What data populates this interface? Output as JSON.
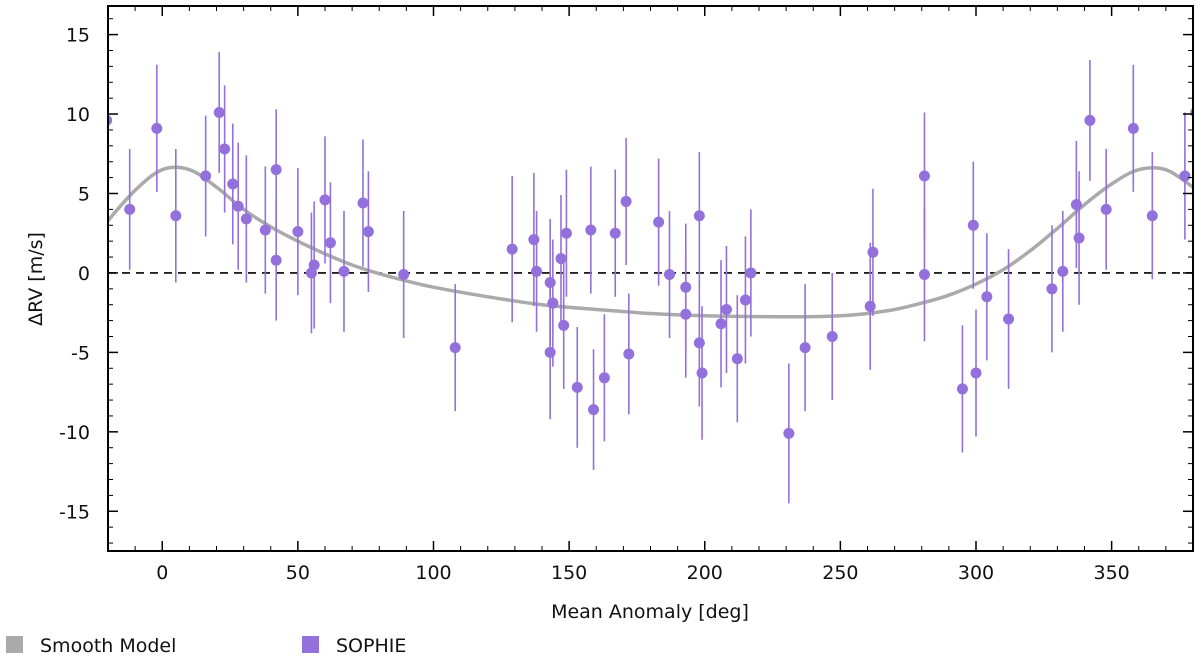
{
  "chart_data": {
    "type": "scatter",
    "title": "",
    "xlabel": "Mean Anomaly [deg]",
    "ylabel": "ΔRV [m/s]",
    "xlim": [
      -20,
      380
    ],
    "ylim": [
      -17.5,
      16.8
    ],
    "grid": false,
    "zero_line": 0,
    "x_ticks": [
      0,
      50,
      100,
      150,
      200,
      250,
      300,
      350
    ],
    "x_tick_labels": [
      "0",
      "50",
      "100",
      "150",
      "200",
      "250",
      "300",
      "350"
    ],
    "y_ticks": [
      15,
      10,
      5,
      0,
      -5,
      -10,
      -15
    ],
    "y_tick_labels": [
      "15",
      "10",
      "5",
      "0",
      "-5",
      "-10",
      "-15"
    ],
    "legend_position": "bottom",
    "series": [
      {
        "name": "Smooth Model",
        "kind": "line",
        "color": "#aaaaaa",
        "x": [
          -20,
          -10,
          0,
          10,
          20,
          30,
          40,
          50,
          60,
          70,
          80,
          90,
          100,
          120,
          140,
          160,
          180,
          200,
          220,
          240,
          250,
          260,
          270,
          280,
          290,
          300,
          310,
          320,
          330,
          340,
          350,
          360,
          370,
          380
        ],
        "y": [
          3.3,
          5.2,
          6.5,
          6.5,
          5.4,
          4.0,
          2.9,
          2.0,
          1.2,
          0.5,
          -0.05,
          -0.5,
          -0.9,
          -1.5,
          -2.0,
          -2.3,
          -2.55,
          -2.7,
          -2.75,
          -2.75,
          -2.7,
          -2.55,
          -2.3,
          -1.9,
          -1.4,
          -0.7,
          0.2,
          1.4,
          2.8,
          4.3,
          5.6,
          6.5,
          6.5,
          5.4
        ]
      },
      {
        "name": "SOPHIE",
        "kind": "errorbar",
        "color": "#9370db",
        "points": [
          {
            "x": -20.5,
            "y": 9.6,
            "err": 4.0
          },
          {
            "x": -12,
            "y": 4.0,
            "err": 3.8
          },
          {
            "x": -2,
            "y": 9.1,
            "err": 4.0
          },
          {
            "x": 5,
            "y": 3.6,
            "err": 4.2
          },
          {
            "x": 16,
            "y": 6.1,
            "err": 3.8
          },
          {
            "x": 21,
            "y": 10.1,
            "err": 3.8
          },
          {
            "x": 23,
            "y": 7.8,
            "err": 4.0
          },
          {
            "x": 26,
            "y": 5.6,
            "err": 3.8
          },
          {
            "x": 28,
            "y": 4.2,
            "err": 4.0
          },
          {
            "x": 31,
            "y": 3.4,
            "err": 4.0
          },
          {
            "x": 38,
            "y": 2.7,
            "err": 4.0
          },
          {
            "x": 42,
            "y": 6.5,
            "err": 3.8
          },
          {
            "x": 42,
            "y": 0.8,
            "err": 3.8
          },
          {
            "x": 50,
            "y": 2.6,
            "err": 4.0
          },
          {
            "x": 55,
            "y": 0.0,
            "err": 3.8
          },
          {
            "x": 56,
            "y": 0.5,
            "err": 4.0
          },
          {
            "x": 60,
            "y": 4.6,
            "err": 4.0
          },
          {
            "x": 62,
            "y": 1.9,
            "err": 3.8
          },
          {
            "x": 67,
            "y": 0.1,
            "err": 3.8
          },
          {
            "x": 74,
            "y": 4.4,
            "err": 4.0
          },
          {
            "x": 76,
            "y": 2.6,
            "err": 3.8
          },
          {
            "x": 89,
            "y": -0.1,
            "err": 4.0
          },
          {
            "x": 108,
            "y": -4.7,
            "err": 4.0
          },
          {
            "x": 129,
            "y": 1.5,
            "err": 4.6
          },
          {
            "x": 137,
            "y": 2.1,
            "err": 4.2
          },
          {
            "x": 138,
            "y": 0.1,
            "err": 3.8
          },
          {
            "x": 143,
            "y": -0.6,
            "err": 4.0
          },
          {
            "x": 143,
            "y": -5.0,
            "err": 4.2
          },
          {
            "x": 144,
            "y": -1.9,
            "err": 4.0
          },
          {
            "x": 147,
            "y": 0.9,
            "err": 4.0
          },
          {
            "x": 148,
            "y": -3.3,
            "err": 4.0
          },
          {
            "x": 149,
            "y": 2.5,
            "err": 4.0
          },
          {
            "x": 153,
            "y": -7.2,
            "err": 3.8
          },
          {
            "x": 158,
            "y": 2.7,
            "err": 4.0
          },
          {
            "x": 159,
            "y": -8.6,
            "err": 3.8
          },
          {
            "x": 163,
            "y": -6.6,
            "err": 4.0
          },
          {
            "x": 167,
            "y": 2.5,
            "err": 4.0
          },
          {
            "x": 171,
            "y": 4.5,
            "err": 4.0
          },
          {
            "x": 172,
            "y": -5.1,
            "err": 3.8
          },
          {
            "x": 183,
            "y": 3.2,
            "err": 4.0
          },
          {
            "x": 187,
            "y": -0.1,
            "err": 4.0
          },
          {
            "x": 193,
            "y": -0.9,
            "err": 4.0
          },
          {
            "x": 193,
            "y": -2.6,
            "err": 4.0
          },
          {
            "x": 198,
            "y": 3.6,
            "err": 4.0
          },
          {
            "x": 198,
            "y": -4.4,
            "err": 4.0
          },
          {
            "x": 199,
            "y": -6.3,
            "err": 4.2
          },
          {
            "x": 206,
            "y": -3.2,
            "err": 4.0
          },
          {
            "x": 208,
            "y": -2.3,
            "err": 4.0
          },
          {
            "x": 212,
            "y": -5.4,
            "err": 4.0
          },
          {
            "x": 215,
            "y": -1.7,
            "err": 4.0
          },
          {
            "x": 217,
            "y": 0.0,
            "err": 4.0
          },
          {
            "x": 231,
            "y": -10.1,
            "err": 4.4
          },
          {
            "x": 237,
            "y": -4.7,
            "err": 4.0
          },
          {
            "x": 247,
            "y": -4.0,
            "err": 4.0
          },
          {
            "x": 261,
            "y": -2.1,
            "err": 4.0
          },
          {
            "x": 262,
            "y": 1.3,
            "err": 4.0
          },
          {
            "x": 281,
            "y": 6.1,
            "err": 4.0
          },
          {
            "x": 281,
            "y": -0.1,
            "err": 4.2
          },
          {
            "x": 295,
            "y": -7.3,
            "err": 4.0
          },
          {
            "x": 299,
            "y": 3.0,
            "err": 4.0
          },
          {
            "x": 300,
            "y": -6.3,
            "err": 4.0
          },
          {
            "x": 304,
            "y": -1.5,
            "err": 4.0
          },
          {
            "x": 312,
            "y": -2.9,
            "err": 4.4
          },
          {
            "x": 328,
            "y": -1.0,
            "err": 4.0
          },
          {
            "x": 332,
            "y": 0.1,
            "err": 3.8
          },
          {
            "x": 337,
            "y": 4.3,
            "err": 4.0
          },
          {
            "x": 338,
            "y": 2.2,
            "err": 4.2
          },
          {
            "x": 342,
            "y": 9.6,
            "err": 3.8
          },
          {
            "x": 348,
            "y": 4.0,
            "err": 3.8
          },
          {
            "x": 358,
            "y": 9.1,
            "err": 4.0
          },
          {
            "x": 365,
            "y": 3.6,
            "err": 4.0
          },
          {
            "x": 377,
            "y": 6.1,
            "err": 4.0
          },
          {
            "x": 381,
            "y": 10.1,
            "err": 4.0
          }
        ]
      }
    ],
    "legend": [
      {
        "label": "Smooth Model",
        "color": "#aaaaaa"
      },
      {
        "label": "SOPHIE",
        "color": "#9370db"
      }
    ]
  }
}
